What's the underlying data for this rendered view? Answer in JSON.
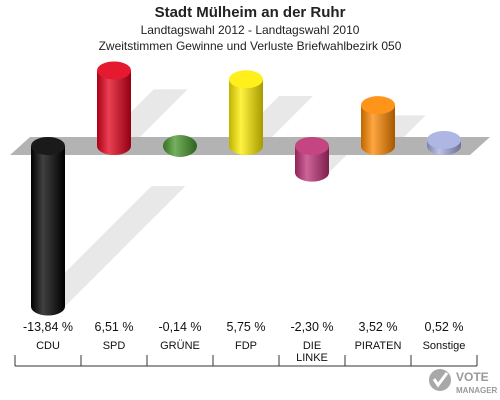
{
  "header": {
    "title": "Stadt Mülheim an der Ruhr",
    "subtitle": "Landtagswahl 2012 - Landtagswahl 2010",
    "description": "Zweitstimmen Gewinne und Verluste Briefwahlbezirk 050"
  },
  "logo": {
    "line1": "VOTE",
    "line2": "MANAGER"
  },
  "chart_data": {
    "type": "bar",
    "categories": [
      "CDU",
      "SPD",
      "GRÜNE",
      "FDP",
      "DIE LINKE",
      "PIRATEN",
      "Sonstige"
    ],
    "category_lines": [
      [
        "CDU"
      ],
      [
        "SPD"
      ],
      [
        "GRÜNE"
      ],
      [
        "FDP"
      ],
      [
        "DIE",
        "LINKE"
      ],
      [
        "PIRATEN"
      ],
      [
        "Sonstige"
      ]
    ],
    "values": [
      -13.84,
      6.51,
      -0.14,
      5.75,
      -2.3,
      3.52,
      0.52
    ],
    "value_labels": [
      "-13,84 %",
      "6,51 %",
      "-0,14 %",
      "5,75 %",
      "-2,30 %",
      "3,52 %",
      "0,52 %"
    ],
    "colors": [
      "#000000",
      "#e2001a",
      "#46962b",
      "#ffed00",
      "#be3075",
      "#ff8800",
      "#a5aee0"
    ],
    "title": "Stadt Mülheim an der Ruhr",
    "grid": false
  }
}
